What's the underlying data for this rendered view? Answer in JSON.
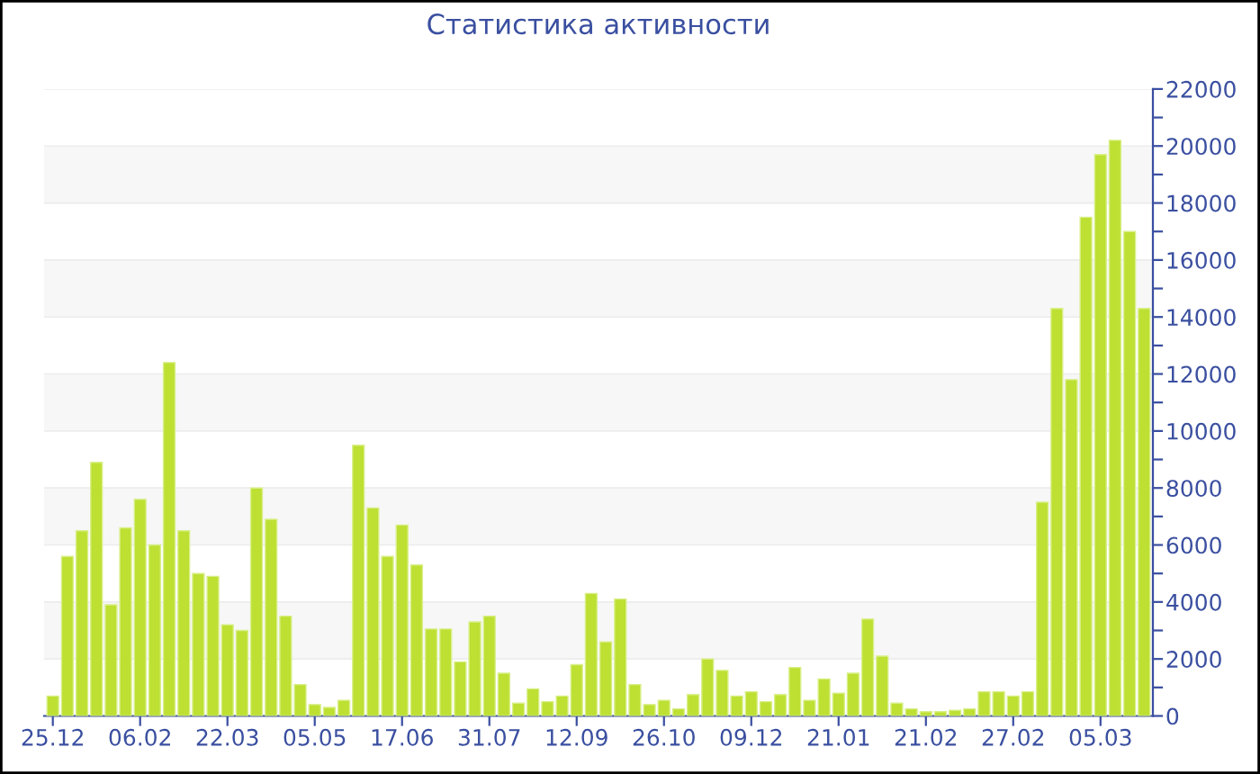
{
  "chart_data": {
    "type": "bar",
    "title": "Статистика активности",
    "categories": [
      "25.12",
      null,
      null,
      null,
      null,
      null,
      "06.02",
      null,
      null,
      null,
      null,
      null,
      "22.03",
      null,
      null,
      null,
      null,
      null,
      "05.05",
      null,
      null,
      null,
      null,
      null,
      "17.06",
      null,
      null,
      null,
      null,
      null,
      "31.07",
      null,
      null,
      null,
      null,
      null,
      "12.09",
      null,
      null,
      null,
      null,
      null,
      "26.10",
      null,
      null,
      null,
      null,
      null,
      "09.12",
      null,
      null,
      null,
      null,
      null,
      "21.01",
      null,
      null,
      null,
      null,
      null,
      "21.02",
      null,
      null,
      null,
      null,
      null,
      "27.02",
      null,
      null,
      null,
      null,
      null,
      "05.03",
      null,
      null,
      null
    ],
    "values": [
      700,
      5600,
      6500,
      8900,
      3900,
      6600,
      7600,
      6000,
      12400,
      6500,
      5000,
      4900,
      3200,
      3000,
      8000,
      6900,
      3500,
      1100,
      400,
      300,
      550,
      9500,
      7300,
      5600,
      6700,
      5300,
      3050,
      3050,
      1900,
      3300,
      3500,
      1500,
      450,
      950,
      500,
      700,
      1800,
      4300,
      2600,
      4100,
      1100,
      400,
      550,
      250,
      750,
      2000,
      1600,
      700,
      850,
      500,
      750,
      1700,
      550,
      1300,
      800,
      1500,
      3400,
      2100,
      450,
      250,
      150,
      150,
      200,
      250,
      850,
      850,
      700,
      850,
      7500,
      14300,
      11800,
      17500,
      19700,
      20200,
      17000,
      14300
    ],
    "color": "#bde033",
    "ylim": [
      0,
      22000
    ],
    "yticks": [
      0,
      {
        "value": 1000,
        "label": null
      },
      2000,
      {
        "value": 3000,
        "label": null
      },
      4000,
      {
        "value": 5000,
        "label": null
      },
      6000,
      {
        "value": 7000,
        "label": null
      },
      8000,
      {
        "value": 9000,
        "label": null
      },
      10000,
      {
        "value": 11000,
        "label": null
      },
      12000,
      {
        "value": 13000,
        "label": null
      },
      14000,
      {
        "value": 15000,
        "label": null
      },
      16000,
      {
        "value": 17000,
        "label": null
      },
      18000,
      {
        "value": 19000,
        "label": null
      },
      20000,
      {
        "value": 21000,
        "label": null
      },
      22000
    ],
    "grid": "y"
  }
}
